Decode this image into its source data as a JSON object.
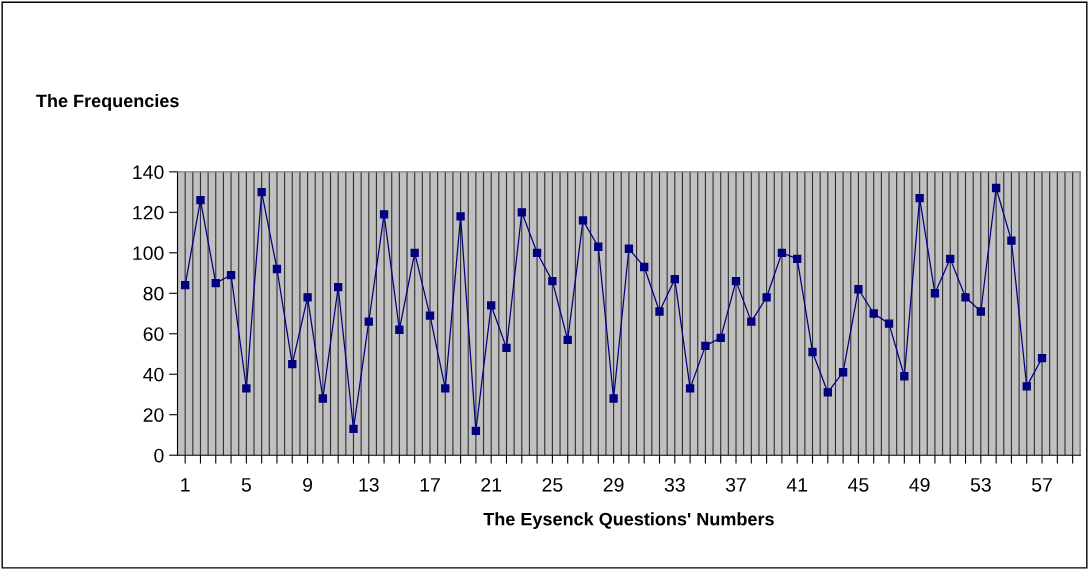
{
  "chart_data": {
    "type": "line",
    "ylabel": "The Frequencies",
    "xlabel": "The Eysenck Questions' Numbers",
    "categories": [
      "1",
      null,
      null,
      null,
      "5",
      null,
      null,
      null,
      "9",
      null,
      null,
      null,
      "13",
      null,
      null,
      null,
      "17",
      null,
      null,
      null,
      "21",
      null,
      null,
      null,
      "25",
      null,
      null,
      null,
      "29",
      null,
      null,
      null,
      "33",
      null,
      null,
      null,
      "37",
      null,
      null,
      null,
      "41",
      null,
      null,
      null,
      "45",
      null,
      null,
      null,
      "49",
      null,
      null,
      null,
      "53",
      null,
      null,
      null,
      "57",
      null,
      null
    ],
    "series": [
      {
        "color": "#000080",
        "values": [
          84,
          126,
          85,
          89,
          33,
          130,
          92,
          45,
          78,
          28,
          83,
          13,
          66,
          119,
          62,
          100,
          69,
          33,
          118,
          12,
          74,
          53,
          120,
          100,
          86,
          57,
          116,
          103,
          28,
          102,
          93,
          71,
          87,
          33,
          54,
          58,
          86,
          66,
          78,
          100,
          97,
          51,
          31,
          41,
          82,
          70,
          65,
          39,
          127,
          80,
          97,
          78,
          71,
          132,
          106,
          34,
          48,
          null,
          null
        ]
      }
    ],
    "ylim": [
      0,
      140
    ],
    "yticks": [
      0,
      20,
      40,
      60,
      80,
      100,
      120,
      140
    ],
    "grid": "x",
    "marker": "square",
    "line_style": "solid",
    "legend": false
  }
}
